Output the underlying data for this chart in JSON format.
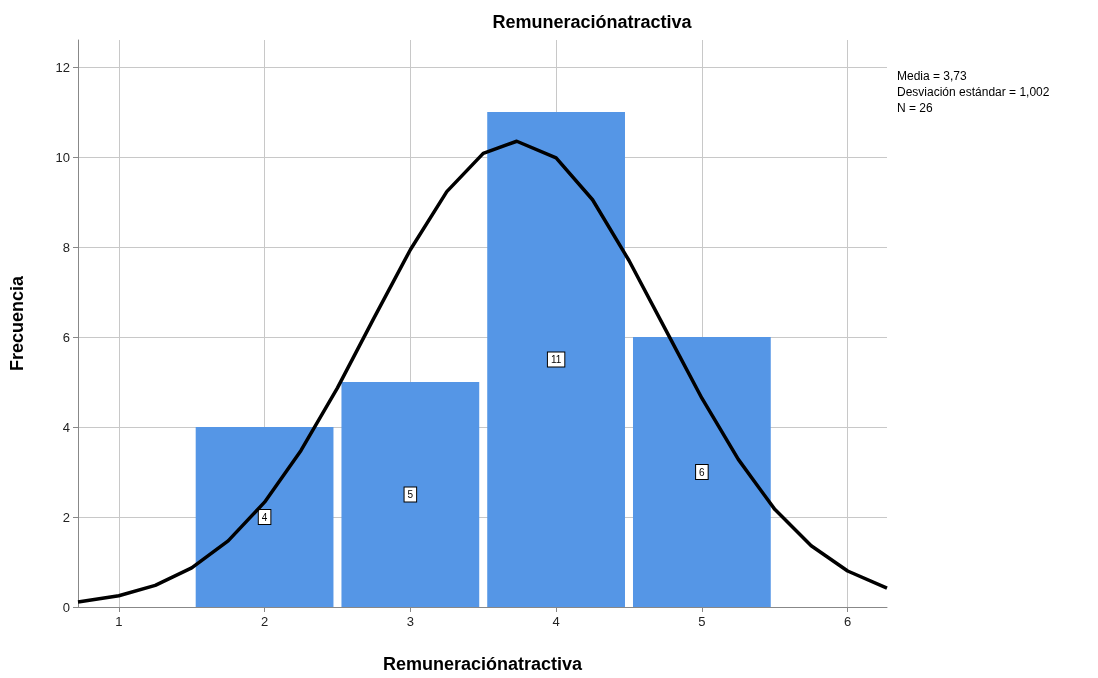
{
  "chart_data": {
    "type": "histogram",
    "title": "Remuneraciónatractiva",
    "xlabel": "Remuneraciónatractiva",
    "ylabel": "Frecuencia",
    "annotations": [
      "Media = 3,73",
      "Desviación estándar = 1,002",
      "N = 26"
    ],
    "series": [
      {
        "color": "#5596e6",
        "bins": [
          1.5,
          2.5,
          3.5,
          4.5,
          5.5
        ],
        "values": [
          4,
          5,
          11,
          6
        ],
        "value_labels": [
          "4",
          "5",
          "11",
          "6"
        ]
      },
      {
        "type": "line",
        "color": "#000000",
        "x": [
          0.72,
          1.0,
          1.25,
          1.5,
          1.75,
          2.0,
          2.25,
          2.5,
          2.75,
          3.0,
          3.25,
          3.5,
          3.73,
          4.0,
          4.25,
          4.5,
          4.75,
          5.0,
          5.25,
          5.5,
          5.75,
          6.0,
          6.27
        ],
        "values": [
          0.11,
          0.25,
          0.48,
          0.87,
          1.47,
          2.33,
          3.48,
          4.87,
          6.42,
          7.94,
          9.23,
          10.08,
          10.35,
          9.98,
          9.05,
          7.7,
          6.17,
          4.64,
          3.28,
          2.17,
          1.36,
          0.8,
          0.42
        ]
      }
    ],
    "xlim": [
      0.72,
      6.27
    ],
    "xticks": [
      1,
      2,
      3,
      4,
      5,
      6
    ],
    "ylim": [
      0,
      12.6
    ],
    "yticks": [
      0,
      2,
      4,
      6,
      8,
      10,
      12
    ],
    "grid": true,
    "marker": "none",
    "line_style": "solid"
  }
}
